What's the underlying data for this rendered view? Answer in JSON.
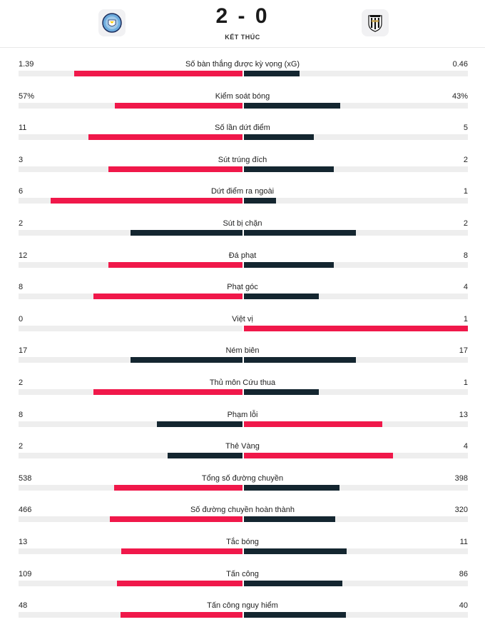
{
  "match": {
    "score": "2 - 0",
    "status": "KẾT THÚC",
    "home_crest": "manchester-city-crest-icon",
    "away_crest": "newcastle-crest-icon"
  },
  "colors": {
    "winner": "#f0184a",
    "loser": "#142630",
    "track": "#eeeeee"
  },
  "stats": [
    {
      "label": "Số bàn thắng được kỳ vọng (xG)",
      "home": "1.39",
      "away": "0.46",
      "home_num": 1.39,
      "away_num": 0.46
    },
    {
      "label": "Kiểm soát bóng",
      "home": "57%",
      "away": "43%",
      "home_num": 57,
      "away_num": 43
    },
    {
      "label": "Số lần dứt điểm",
      "home": "11",
      "away": "5",
      "home_num": 11,
      "away_num": 5
    },
    {
      "label": "Sút trúng đích",
      "home": "3",
      "away": "2",
      "home_num": 3,
      "away_num": 2
    },
    {
      "label": "Dứt điểm ra ngoài",
      "home": "6",
      "away": "1",
      "home_num": 6,
      "away_num": 1
    },
    {
      "label": "Sút bị chặn",
      "home": "2",
      "away": "2",
      "home_num": 2,
      "away_num": 2
    },
    {
      "label": "Đá phạt",
      "home": "12",
      "away": "8",
      "home_num": 12,
      "away_num": 8
    },
    {
      "label": "Phạt góc",
      "home": "8",
      "away": "4",
      "home_num": 8,
      "away_num": 4
    },
    {
      "label": "Việt vị",
      "home": "0",
      "away": "1",
      "home_num": 0,
      "away_num": 1
    },
    {
      "label": "Ném biên",
      "home": "17",
      "away": "17",
      "home_num": 17,
      "away_num": 17
    },
    {
      "label": "Thủ môn Cứu thua",
      "home": "2",
      "away": "1",
      "home_num": 2,
      "away_num": 1
    },
    {
      "label": "Phạm lỗi",
      "home": "8",
      "away": "13",
      "home_num": 8,
      "away_num": 13
    },
    {
      "label": "Thẻ Vàng",
      "home": "2",
      "away": "4",
      "home_num": 2,
      "away_num": 4
    },
    {
      "label": "Tổng số đường chuyền",
      "home": "538",
      "away": "398",
      "home_num": 538,
      "away_num": 398
    },
    {
      "label": "Số đường chuyền hoàn thành",
      "home": "466",
      "away": "320",
      "home_num": 466,
      "away_num": 320
    },
    {
      "label": "Tắc bóng",
      "home": "13",
      "away": "11",
      "home_num": 13,
      "away_num": 11
    },
    {
      "label": "Tấn công",
      "home": "109",
      "away": "86",
      "home_num": 109,
      "away_num": 86
    },
    {
      "label": "Tấn công nguy hiểm",
      "home": "48",
      "away": "40",
      "home_num": 48,
      "away_num": 40
    }
  ]
}
